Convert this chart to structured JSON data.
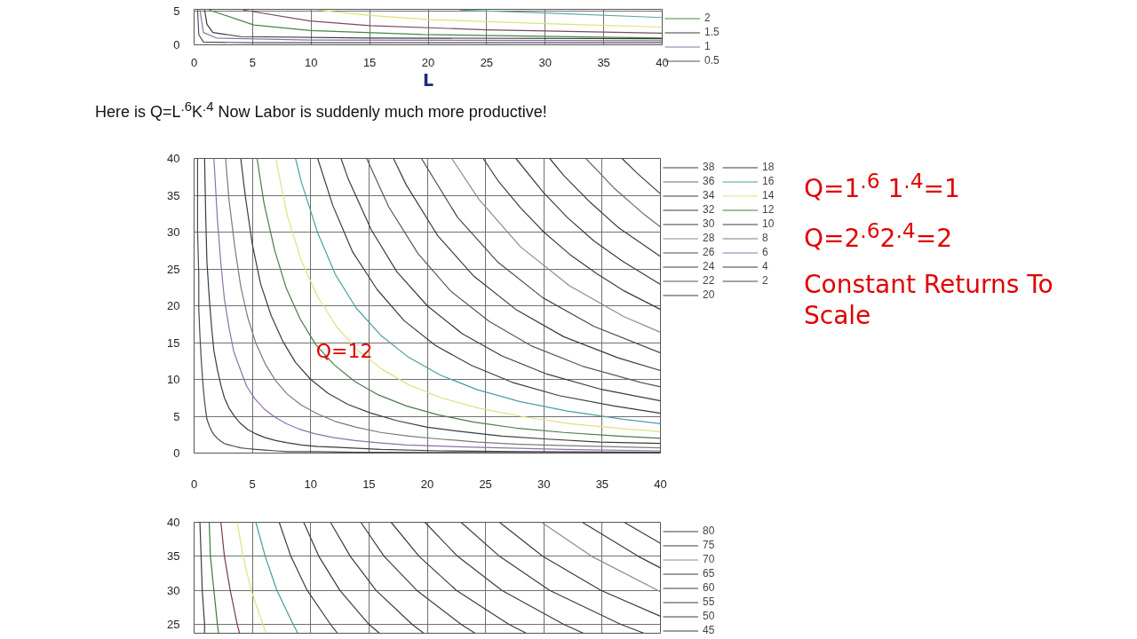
{
  "chart_data": [
    {
      "type": "line",
      "xlabel": "L",
      "xlim": [
        0,
        40
      ],
      "ylim": [
        0,
        5.2
      ],
      "xticks": [
        0,
        5,
        10,
        15,
        20,
        25,
        30,
        35,
        40
      ],
      "yticks": [
        0,
        5
      ],
      "grid": true,
      "legend": "right",
      "series": [
        {
          "color": "#5aa9a9",
          "x": [
            22.7,
            31,
            40
          ],
          "values": [
            5.1,
            4.6,
            4.0
          ]
        },
        {
          "color": "#e0e07a",
          "x": [
            10.6,
            15,
            20.2,
            30,
            40
          ],
          "values": [
            5.1,
            4.3,
            3.7,
            3.1,
            2.6
          ]
        },
        {
          "color": "#7a4a5a",
          "x": [
            4.2,
            9.9,
            15,
            25,
            40
          ],
          "values": [
            5.1,
            3.5,
            2.8,
            2.2,
            1.7
          ]
        },
        {
          "name": "2",
          "color": "#3f8a3f",
          "x": [
            1.3,
            5.1,
            9.9,
            19.5,
            40
          ],
          "values": [
            5.1,
            2.9,
            2.1,
            1.5,
            1.0
          ]
        },
        {
          "name": "1.5",
          "color": "#3c3c3c",
          "x": [
            0.9,
            1.1,
            1.6,
            4,
            15,
            40
          ],
          "values": [
            5.1,
            3.0,
            1.8,
            1.2,
            1.0,
            0.9
          ]
        },
        {
          "name": "1",
          "color": "#9070a8",
          "x": [
            0.5,
            0.8,
            1.9,
            9.9,
            40
          ],
          "values": [
            5.1,
            1.8,
            1.0,
            0.7,
            0.6
          ]
        },
        {
          "name": "0.5",
          "color": "#505050",
          "x": [
            0.3,
            0.4,
            0.8,
            5,
            40
          ],
          "values": [
            5.1,
            1.5,
            0.4,
            0.3,
            0.3
          ]
        }
      ]
    },
    {
      "type": "line",
      "title": "Here is Q=L$^{.6}$K$^{.4}$ Now Labor is suddenly much more productive!",
      "xlim": [
        0,
        40
      ],
      "ylim": [
        0,
        40
      ],
      "xticks": [
        0,
        5,
        10,
        15,
        20,
        25,
        30,
        35,
        40
      ],
      "yticks": [
        0,
        5,
        10,
        15,
        20,
        25,
        30,
        35,
        40
      ],
      "grid": true,
      "legend": "right",
      "annotations": [
        "Q=1$^{.6}$ 1$^{.4}$=1",
        "Q=2$^{.6}$2$^{.4}$=2",
        "Constant Returns To Scale",
        {
          "text": "Q=12",
          "x": 10,
          "y": 15
        }
      ],
      "series": [
        {
          "name": "38",
          "color": "#3c3c3c",
          "x": [
            36.7,
            38,
            40
          ],
          "values": [
            40,
            38,
            35.2
          ]
        },
        {
          "name": "36",
          "color": "#6a6a6a",
          "x": [
            33.6,
            36,
            38.6,
            40
          ],
          "values": [
            40,
            36,
            32.4,
            30.7
          ]
        },
        {
          "name": "34",
          "color": "#3c3c3c",
          "x": [
            30.5,
            31.7,
            34,
            36.4,
            40
          ],
          "values": [
            40,
            37.7,
            34,
            30.6,
            26.7
          ]
        },
        {
          "name": "32",
          "color": "#3c3c3c",
          "x": [
            27.6,
            29.9,
            32,
            34.3,
            36.8,
            40
          ],
          "values": [
            40,
            35.5,
            32,
            28.8,
            26,
            22.9
          ]
        },
        {
          "name": "30",
          "color": "#3c3c3c",
          "x": [
            24.8,
            26.1,
            28,
            30,
            32.2,
            34.5,
            36.9,
            40
          ],
          "values": [
            40,
            36.9,
            33.3,
            30,
            27,
            24.4,
            22,
            19.5
          ]
        },
        {
          "name": "28",
          "color": "#8a8a8a",
          "x": [
            22.1,
            24.4,
            28,
            32.2,
            36.9,
            40
          ],
          "values": [
            40,
            34.5,
            28,
            22.7,
            18.5,
            16.4
          ]
        },
        {
          "name": "26",
          "color": "#4a4a4a",
          "x": [
            19.5,
            22.6,
            26,
            29.9,
            34.3,
            40
          ],
          "values": [
            40,
            32,
            26,
            21.1,
            17.2,
            13.6
          ]
        },
        {
          "name": "24",
          "color": "#3c3c3c",
          "x": [
            17.1,
            18.2,
            20.9,
            24,
            27.6,
            31.7,
            36.4,
            40
          ],
          "values": [
            40,
            36.4,
            29.5,
            24,
            19.5,
            15.8,
            12.9,
            11.2
          ]
        },
        {
          "name": "22",
          "color": "#5a5a4a",
          "x": [
            14.8,
            16.7,
            19.2,
            22,
            25.3,
            29,
            33.3,
            38.3,
            40
          ],
          "values": [
            40,
            33.4,
            27.1,
            22,
            17.9,
            14.5,
            11.8,
            9.6,
            9
          ]
        },
        {
          "name": "20",
          "color": "#3c3c3c",
          "x": [
            12.6,
            13.2,
            15.2,
            17.4,
            20,
            23,
            26.4,
            30.3,
            34.8,
            40
          ],
          "values": [
            40,
            37.3,
            30.3,
            24.6,
            20,
            16.2,
            13.2,
            10.7,
            8.7,
            7.1
          ]
        },
        {
          "name": "18",
          "color": "#3c3c3c",
          "x": [
            10.6,
            11.9,
            13.6,
            15.7,
            18,
            20.7,
            23.8,
            27.3,
            31.3,
            36,
            40
          ],
          "values": [
            40,
            33.6,
            27.3,
            22.2,
            18,
            14.6,
            11.9,
            9.6,
            7.8,
            6.4,
            5.4
          ]
        },
        {
          "name": "16",
          "color": "#4aa0a0",
          "x": [
            8.7,
            9.2,
            10.6,
            12.1,
            13.9,
            16,
            18.4,
            21.1,
            24.3,
            27.9,
            32,
            36.8,
            40
          ],
          "values": [
            40,
            36.8,
            29.9,
            24.3,
            19.7,
            16,
            13,
            10.6,
            8.6,
            7,
            5.7,
            4.6,
            4
          ]
        },
        {
          "name": "14",
          "color": "#e0e080",
          "x": [
            7,
            8,
            9.2,
            10.6,
            12.2,
            14,
            16.1,
            18.5,
            21.2,
            24.4,
            28,
            32.2,
            36.9,
            40
          ],
          "values": [
            40,
            32.2,
            26.1,
            21.2,
            17.2,
            14,
            11.4,
            9.2,
            7.5,
            6.1,
            5,
            4,
            3.3,
            2.9
          ]
        },
        {
          "name": "12",
          "color": "#4a7a4a",
          "x": [
            5.4,
            6,
            6.9,
            7.9,
            9.1,
            10.4,
            12,
            13.8,
            15.8,
            18.2,
            20.9,
            24,
            27.6,
            31.7,
            36.4,
            40
          ],
          "values": [
            40,
            33.9,
            27.6,
            22.4,
            18.2,
            14.8,
            12,
            9.7,
            7.9,
            6.4,
            5.2,
            4.2,
            3.4,
            2.8,
            2.3,
            2
          ]
        },
        {
          "name": "10",
          "color": "#3c3c3c",
          "x": [
            4,
            4.4,
            5,
            5.7,
            6.6,
            7.6,
            8.7,
            10,
            11.5,
            13.2,
            15.2,
            17.4,
            20,
            23,
            26.4,
            30.3,
            34.8,
            40
          ],
          "values": [
            40,
            34.8,
            28.3,
            23,
            18.7,
            15.2,
            12.3,
            10,
            8.1,
            6.6,
            5.4,
            4.4,
            3.5,
            2.9,
            2.3,
            1.9,
            1.5,
            1.3
          ]
        },
        {
          "name": "8",
          "color": "#7a7a7a",
          "x": [
            2.7,
            3,
            3.5,
            4,
            4.6,
            5.3,
            6.1,
            7,
            8,
            9.2,
            10.6,
            12.1,
            13.9,
            16,
            18.4,
            21.1,
            24.3,
            27.9,
            32,
            40
          ],
          "values": [
            40,
            34.3,
            27.9,
            22.6,
            18.4,
            14.9,
            12.1,
            9.8,
            8,
            6.5,
            5.3,
            4.3,
            3.5,
            2.8,
            2.3,
            1.9,
            1.5,
            1.2,
            1,
            0.7
          ]
        },
        {
          "name": "6",
          "color": "#9070a8",
          "x": [
            1.7,
            2,
            2.3,
            2.6,
            3,
            3.4,
            4,
            4.5,
            5.2,
            6,
            6.9,
            7.9,
            9.1,
            10.4,
            12,
            13.8,
            15.8,
            18.2,
            24,
            31.7,
            40
          ],
          "values": [
            40,
            31.7,
            25.7,
            20.9,
            17,
            13.8,
            11.2,
            9.1,
            7.4,
            6,
            4.9,
            4,
            3.2,
            2.6,
            2.1,
            1.7,
            1.4,
            1.1,
            0.8,
            0.5,
            0.3
          ]
        },
        {
          "name": "4",
          "color": "#3c3c3c",
          "x": [
            0.9,
            1,
            1.1,
            1.3,
            1.5,
            1.7,
            2,
            2.3,
            2.6,
            3,
            3.5,
            4,
            4.6,
            5.3,
            6.1,
            7,
            8,
            9.2,
            10.6,
            12.1,
            16,
            21.1,
            27.9,
            40
          ],
          "values": [
            40,
            32,
            26,
            21.1,
            17.1,
            13.9,
            11.3,
            9.2,
            7.5,
            6.1,
            4.9,
            4,
            3.2,
            2.6,
            2.1,
            1.7,
            1.4,
            1.1,
            0.9,
            0.8,
            0.5,
            0.3,
            0.2,
            0.1
          ]
        },
        {
          "name": "2",
          "color": "#4a4a4a",
          "x": [
            0.3,
            0.3,
            0.4,
            0.4,
            0.5,
            0.6,
            0.7,
            0.8,
            0.9,
            1,
            1.1,
            1.3,
            1.5,
            1.7,
            2,
            2.3,
            2.6,
            3,
            3.5,
            4,
            4.6,
            5.3,
            6.1,
            7,
            8,
            10.6,
            13.9,
            40
          ],
          "values": [
            40,
            29.9,
            24.3,
            19.7,
            16,
            13,
            10.6,
            8.6,
            7,
            5.7,
            4.6,
            3.7,
            3,
            2.5,
            2,
            1.6,
            1.3,
            1.1,
            0.9,
            0.7,
            0.6,
            0.5,
            0.4,
            0.3,
            0.2,
            0.2,
            0.1,
            0
          ]
        }
      ]
    },
    {
      "type": "line",
      "xlim": [
        0,
        40
      ],
      "ylim": [
        23.7,
        40
      ],
      "xticks": [
        {
          "value": 0,
          "label": null
        },
        {
          "value": 5,
          "label": null
        },
        {
          "value": 10,
          "label": null
        },
        {
          "value": 15,
          "label": null
        },
        {
          "value": 20,
          "label": null
        },
        {
          "value": 25,
          "label": null
        },
        {
          "value": 30,
          "label": null
        },
        {
          "value": 35,
          "label": null
        },
        {
          "value": 40,
          "label": null
        }
      ],
      "yticks": [
        25,
        30,
        35,
        40
      ],
      "grid": true,
      "legend": "right",
      "tick_labels": "y",
      "series": [
        {
          "name": "80",
          "color": "#3c3c3c",
          "x": [
            36.9,
            40
          ],
          "values": [
            40,
            36.9
          ]
        },
        {
          "name": "75",
          "color": "#3c3c3c",
          "x": [
            33.3,
            38.1,
            40
          ],
          "values": [
            40,
            35,
            33.3
          ]
        },
        {
          "name": "70",
          "color": "#8c8c8c",
          "x": [
            29.8,
            34.1,
            40
          ],
          "values": [
            40,
            35,
            29.8
          ]
        },
        {
          "name": "65",
          "color": "#3c3c3c",
          "x": [
            26.2,
            29.9,
            34.9,
            40
          ],
          "values": [
            40,
            35,
            30,
            26.2
          ]
        },
        {
          "name": "60",
          "color": "#3c3c3c",
          "x": [
            22.9,
            26.2,
            30.5,
            36.6,
            38.6
          ],
          "values": [
            40,
            35,
            30,
            25,
            23.7
          ]
        },
        {
          "name": "55",
          "color": "#3c3c3c",
          "x": [
            19.8,
            22.6,
            26.4,
            31.7,
            33.4
          ],
          "values": [
            40,
            35,
            30,
            25,
            23.7
          ]
        },
        {
          "name": "50",
          "color": "#3c3c3c",
          "x": [
            16.9,
            19.3,
            22.5,
            27,
            28.5
          ],
          "values": [
            40,
            35,
            30,
            25,
            23.7
          ]
        },
        {
          "name": "45",
          "color": "#3c3c3c",
          "x": [
            14.3,
            16.3,
            19.1,
            22.9,
            24.1
          ],
          "values": [
            40,
            35,
            30,
            25,
            23.7
          ]
        },
        {
          "color": "#3c3c3c",
          "x": [
            11.7,
            13.4,
            15.6,
            18.7,
            19.7
          ],
          "values": [
            40,
            35,
            30,
            25,
            23.7
          ]
        },
        {
          "color": "#3c3c3c",
          "x": [
            9.4,
            10.7,
            12.5,
            15,
            15.9
          ],
          "values": [
            40,
            35,
            30,
            25,
            23.7
          ]
        },
        {
          "color": "#3c3c3c",
          "x": [
            7.3,
            8.3,
            9.7,
            11.7,
            12.3
          ],
          "values": [
            40,
            35,
            30,
            25,
            23.7
          ]
        },
        {
          "color": "#4a9a9a",
          "x": [
            5.3,
            6.1,
            7.1,
            8.5,
            8.9
          ],
          "values": [
            40,
            35,
            30,
            25,
            23.7
          ]
        },
        {
          "color": "#e0e080",
          "x": [
            3.7,
            4.2,
            4.9,
            5.9,
            6.2
          ],
          "values": [
            40,
            35,
            30,
            25,
            23.7
          ]
        },
        {
          "color": "#7a3a4a",
          "x": [
            2.3,
            2.6,
            3.1,
            3.7,
            3.9
          ],
          "values": [
            40,
            35,
            30,
            25,
            23.7
          ]
        },
        {
          "color": "#3a7a3a",
          "x": [
            1.3,
            1.4,
            1.7,
            2,
            2.1
          ],
          "values": [
            40,
            35,
            30,
            25,
            23.7
          ]
        },
        {
          "color": "#3c3c3c",
          "x": [
            0.5,
            0.6,
            0.7,
            0.9,
            0.9
          ],
          "values": [
            40,
            35,
            30,
            25,
            23.7
          ]
        }
      ]
    }
  ]
}
